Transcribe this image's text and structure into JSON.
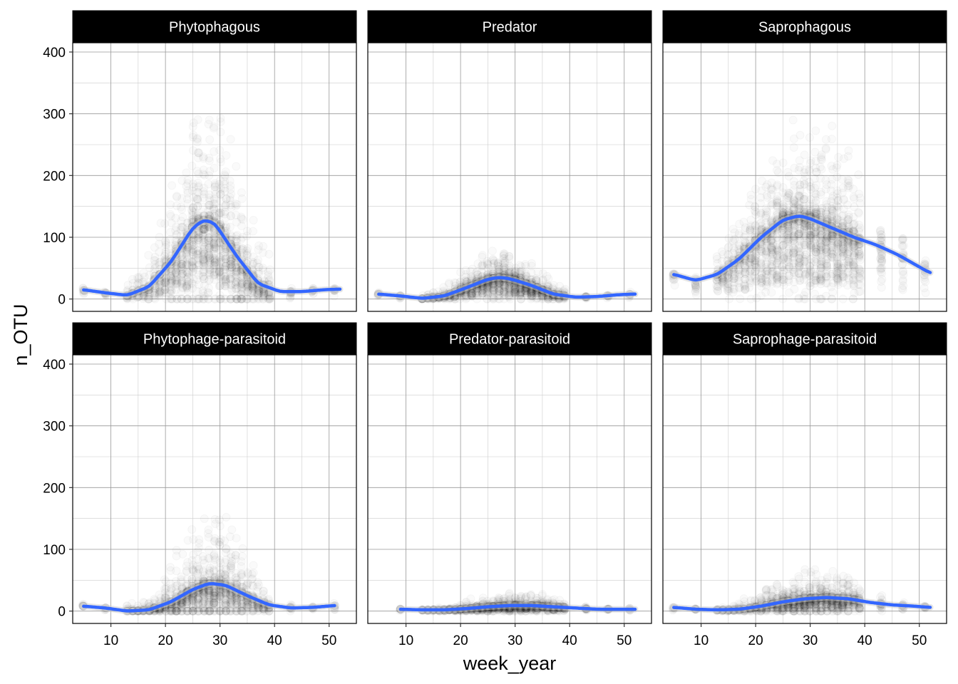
{
  "chart_data": {
    "type": "scatter",
    "xlabel": "week_year",
    "ylabel": "n_OTU",
    "xlim": [
      3,
      55
    ],
    "ylim": [
      -20,
      415
    ],
    "x_ticks": [
      10,
      20,
      30,
      40,
      50
    ],
    "y_ticks": [
      0,
      100,
      200,
      300,
      400
    ],
    "grid": true,
    "layout": "facet-grid 2 rows x 3 columns, shared axes",
    "point_color": "#000000",
    "point_opacity": 0.02,
    "smooth_color": "#3366FF",
    "panels": [
      {
        "name": "Phytophagous",
        "smooth": {
          "x": [
            5,
            9,
            13,
            17,
            21,
            25,
            27,
            29,
            33,
            37,
            41,
            45,
            49,
            52
          ],
          "y": [
            15,
            10,
            6,
            20,
            60,
            115,
            128,
            123,
            70,
            25,
            12,
            12,
            15,
            16
          ]
        },
        "cloud": {
          "peak": 28,
          "spread": 6.5,
          "max": 400,
          "density": 1.0,
          "floor": 5
        }
      },
      {
        "name": "Predator",
        "smooth": {
          "x": [
            5,
            9,
            13,
            17,
            21,
            25,
            27,
            29,
            33,
            37,
            41,
            45,
            49,
            52
          ],
          "y": [
            8,
            5,
            1,
            5,
            18,
            32,
            35,
            33,
            22,
            8,
            3,
            4,
            7,
            8
          ]
        },
        "cloud": {
          "peak": 28,
          "spread": 7,
          "max": 100,
          "density": 0.8,
          "floor": 0
        }
      },
      {
        "name": "Saprophagous",
        "smooth": {
          "x": [
            5,
            9,
            13,
            17,
            21,
            25,
            28,
            30,
            34,
            38,
            42,
            46,
            50,
            52
          ],
          "y": [
            40,
            30,
            40,
            65,
            100,
            128,
            135,
            130,
            115,
            100,
            88,
            72,
            52,
            42
          ]
        },
        "cloud": {
          "peak": 30,
          "spread": 10,
          "max": 360,
          "density": 1.0,
          "floor": 15
        }
      },
      {
        "name": "Phytophage-parasitoid",
        "smooth": {
          "x": [
            5,
            9,
            13,
            17,
            21,
            25,
            28,
            31,
            35,
            39,
            43,
            47,
            51
          ],
          "y": [
            8,
            5,
            0,
            2,
            15,
            35,
            45,
            42,
            25,
            10,
            5,
            6,
            9
          ]
        },
        "cloud": {
          "peak": 28,
          "spread": 6.5,
          "max": 210,
          "density": 0.8,
          "floor": 0
        }
      },
      {
        "name": "Predator-parasitoid",
        "smooth": {
          "x": [
            9,
            13,
            17,
            21,
            25,
            29,
            33,
            37,
            41,
            45,
            49,
            52
          ],
          "y": [
            3,
            2,
            2,
            4,
            7,
            9,
            9,
            7,
            5,
            3,
            3,
            3
          ]
        },
        "cloud": {
          "peak": 30,
          "spread": 8,
          "max": 40,
          "density": 0.6,
          "floor": 0
        }
      },
      {
        "name": "Saprophage-parasitoid",
        "smooth": {
          "x": [
            5,
            9,
            13,
            17,
            21,
            25,
            29,
            33,
            37,
            41,
            45,
            49,
            52
          ],
          "y": [
            6,
            3,
            2,
            3,
            8,
            15,
            20,
            22,
            20,
            14,
            10,
            8,
            6
          ]
        },
        "cloud": {
          "peak": 31,
          "spread": 8,
          "max": 95,
          "density": 0.7,
          "floor": 0
        }
      }
    ]
  }
}
